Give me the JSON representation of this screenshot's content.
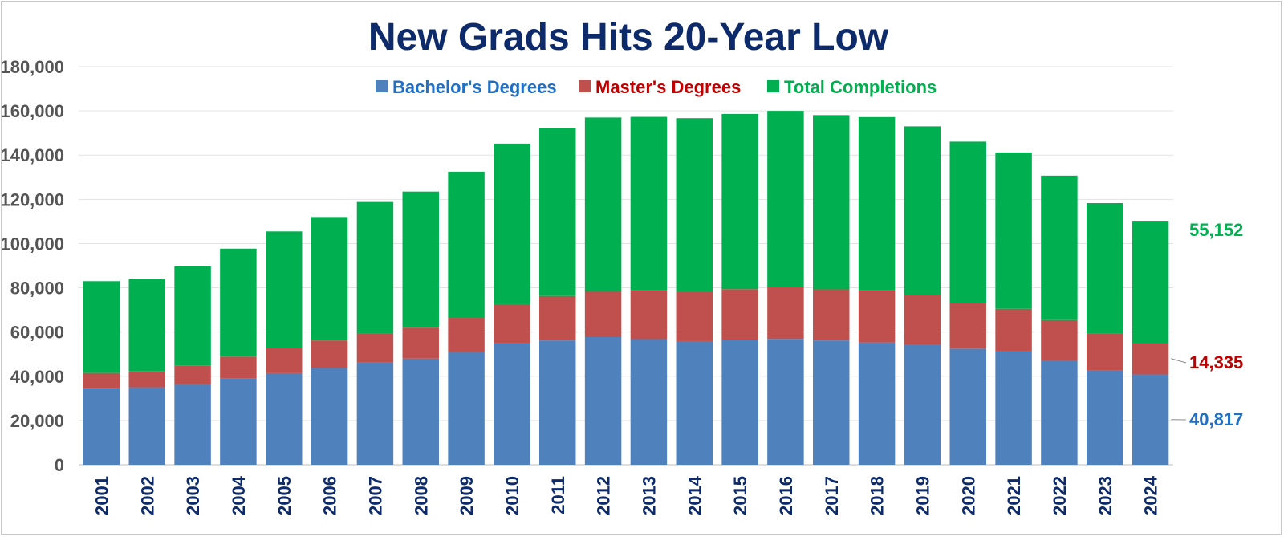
{
  "chart_data": {
    "type": "bar",
    "stacked": true,
    "title": "New Grads Hits 20-Year Low",
    "xlabel": "",
    "ylabel": "",
    "ylim": [
      0,
      180000
    ],
    "yticks": [
      0,
      20000,
      40000,
      60000,
      80000,
      100000,
      120000,
      140000,
      160000,
      180000
    ],
    "ytick_labels": [
      "0",
      "20,000",
      "40,000",
      "60,000",
      "80,000",
      "100,000",
      "120,000",
      "140,000",
      "160,000",
      "180,000"
    ],
    "grid": true,
    "legend_position": "top-center",
    "categories": [
      "2001",
      "2002",
      "2003",
      "2004",
      "2005",
      "2006",
      "2007",
      "2008",
      "2009",
      "2010",
      "2011",
      "2012",
      "2013",
      "2014",
      "2015",
      "2016",
      "2017",
      "2018",
      "2019",
      "2020",
      "2021",
      "2022",
      "2023",
      "2024"
    ],
    "series": [
      {
        "name": "Bachelor's Degrees",
        "color": "#4f81bd",
        "legend_text_color": "#1f6fc5",
        "values": [
          34800,
          35000,
          36400,
          38900,
          41400,
          43800,
          46300,
          48000,
          51000,
          55000,
          56200,
          57700,
          56800,
          55900,
          56500,
          56900,
          56200,
          55300,
          54100,
          52500,
          51200,
          47200,
          42500,
          40817
        ]
      },
      {
        "name": "Master's Degrees",
        "color": "#c0504d",
        "legend_text_color": "#c00000",
        "values": [
          6700,
          7200,
          8500,
          10000,
          11400,
          12400,
          13200,
          14000,
          15400,
          17600,
          20100,
          20800,
          22000,
          22500,
          22900,
          23300,
          23100,
          23500,
          22500,
          20600,
          19300,
          18200,
          16800,
          14335
        ]
      },
      {
        "name": "Total Completions",
        "color": "#00b050",
        "legend_text_color": "#00b050",
        "values": [
          41500,
          42000,
          44800,
          48800,
          52700,
          55800,
          59300,
          61500,
          66100,
          72600,
          76000,
          78500,
          78500,
          78300,
          79200,
          79800,
          78800,
          78400,
          76400,
          73000,
          70700,
          65300,
          59000,
          55152
        ]
      }
    ],
    "annotations": [
      {
        "series": "Total Completions",
        "category": "2024",
        "text": "55,152",
        "color": "#00b050"
      },
      {
        "series": "Master's Degrees",
        "category": "2024",
        "text": "14,335",
        "color": "#c00000"
      },
      {
        "series": "Bachelor's Degrees",
        "category": "2024",
        "text": "40,817",
        "color": "#1f6fc5"
      }
    ]
  }
}
